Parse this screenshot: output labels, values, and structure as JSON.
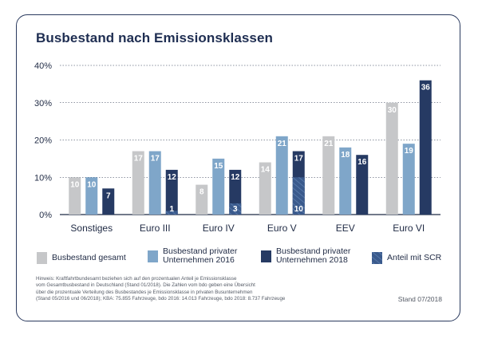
{
  "title": "Busbestand nach Emissionsklassen",
  "colors": {
    "gesamt": "#c6c7c9",
    "privat2016": "#7fa6c9",
    "privat2018": "#263a63",
    "scr": "#3a5a8c",
    "frame": "#2a3a5e",
    "axis": "#1f2a44"
  },
  "chart_data": {
    "type": "bar",
    "categories": [
      "Sonstiges",
      "Euro III",
      "Euro IV",
      "Euro V",
      "EEV",
      "Euro VI"
    ],
    "ylim": [
      0,
      40
    ],
    "yticks": [
      "0%",
      "10%",
      "20%",
      "30%",
      "40%"
    ],
    "ytick_values": [
      0,
      10,
      20,
      30,
      40
    ],
    "series": [
      {
        "name": "Busbestand gesamt",
        "values": [
          10,
          17,
          8,
          14,
          21,
          30
        ]
      },
      {
        "name": "Busbestand privater Unternehmen 2016",
        "values": [
          10,
          17,
          15,
          21,
          18,
          19
        ]
      },
      {
        "name": "Busbestand privater Unternehmen 2018",
        "values": [
          7,
          12,
          12,
          17,
          16,
          36
        ]
      }
    ],
    "overlay": {
      "name": "Anteil mit SCR",
      "values": [
        null,
        1,
        3,
        10,
        null,
        null
      ]
    }
  },
  "legend": [
    {
      "key": "gesamt",
      "lines": [
        "Busbestand gesamt"
      ]
    },
    {
      "key": "privat2016",
      "lines": [
        "Busbestand privater",
        "Unternehmen 2016"
      ]
    },
    {
      "key": "privat2018",
      "lines": [
        "Busbestand privater",
        "Unternehmen 2018"
      ]
    },
    {
      "key": "scr",
      "lines": [
        "Anteil mit SCR"
      ]
    }
  ],
  "note": "Hinweis: Kraftfahrtbundesamt beziehen sich auf den prozentualen Anteil je Emissionsklasse\nvom Gesamtbusbestand in Deutschland (Stand 01/2018). Die Zahlen vom bdo geben eine Übersicht\nüber die prozentuale Verteilung des Busbestandes je Emissionsklasse in privaten Busunternehmen\n(Stand 05/2016 und 06/2018); KBA: 75.855 Fahrzeuge, bdo 2016: 14.013 Fahrzeuge, bdo 2018: 8.737 Fahrzeuge",
  "stand": "Stand 07/2018"
}
